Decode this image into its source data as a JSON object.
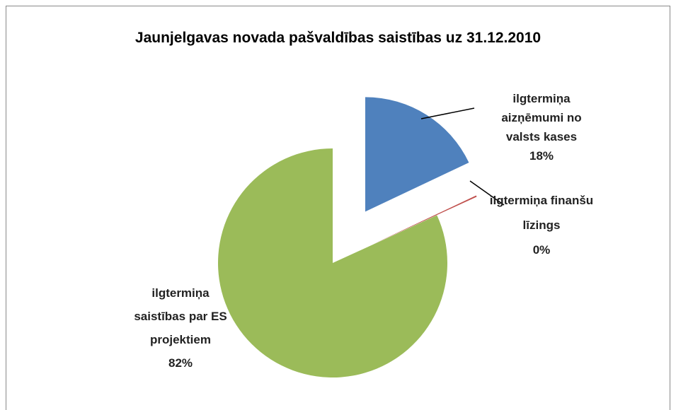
{
  "chart_data": {
    "type": "pie",
    "title": "Jaunjelgavas novada pašvaldības saistības uz 31.12.2010",
    "categories": [
      "ilgtermiņa aizņēmumi no valsts kases",
      "ilgtermiņa finanšu līzings",
      "ilgtermiņa saistības par ES projektiem"
    ],
    "values": [
      18,
      0.2,
      82
    ],
    "value_labels": [
      "18%",
      "0%",
      "82%"
    ],
    "colors": [
      "#4f81bd",
      "#c0504d",
      "#9bbb59"
    ]
  }
}
